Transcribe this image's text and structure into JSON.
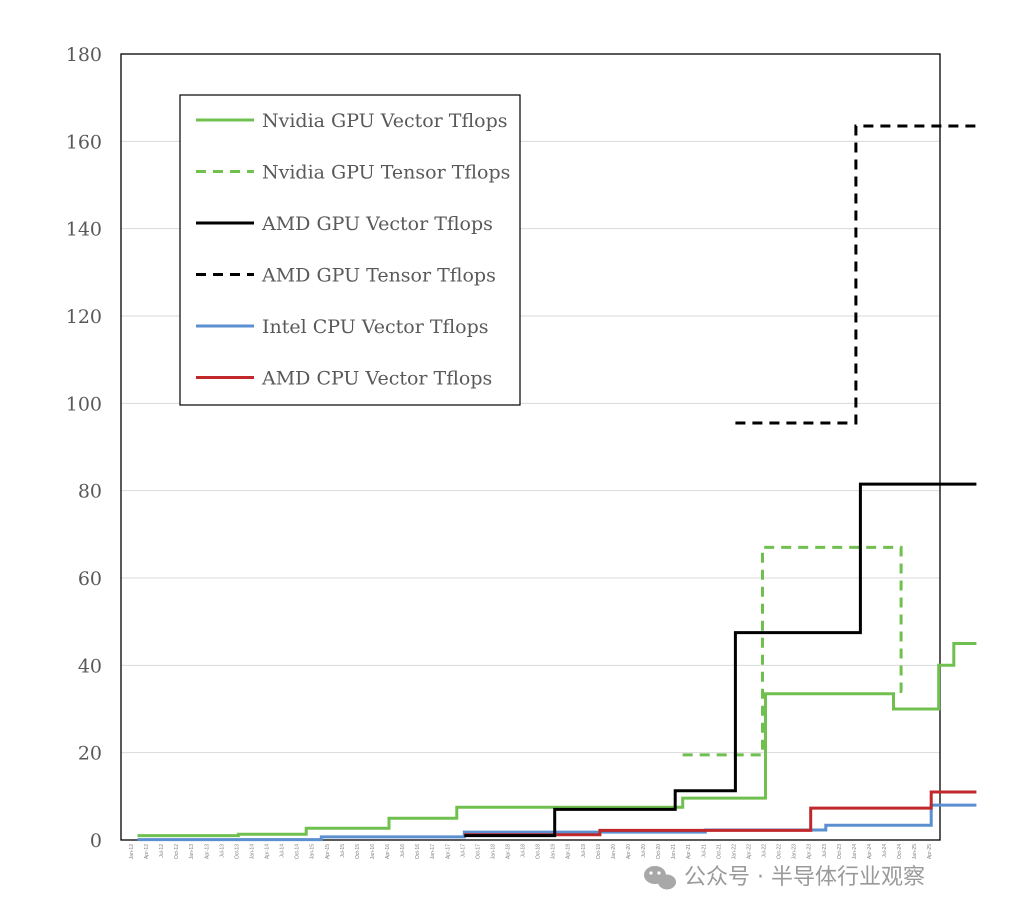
{
  "chart_data": {
    "type": "line",
    "title": "",
    "xlabel": "",
    "ylabel": "",
    "ylim": [
      0,
      180
    ],
    "yticks": [
      0,
      20,
      40,
      60,
      80,
      100,
      120,
      140,
      160,
      180
    ],
    "xticks": [
      "Jan-12",
      "Apr-12",
      "Jul-12",
      "Oct-12",
      "Jan-13",
      "Apr-13",
      "Jul-13",
      "Oct-13",
      "Jan-14",
      "Apr-14",
      "Jul-14",
      "Oct-14",
      "Jan-15",
      "Apr-15",
      "Jul-15",
      "Oct-15",
      "Jan-16",
      "Apr-16",
      "Jul-16",
      "Oct-16",
      "Jan-17",
      "Apr-17",
      "Jul-17",
      "Oct-17",
      "Jan-18",
      "Apr-18",
      "Jul-18",
      "Oct-18",
      "Jan-19",
      "Apr-19",
      "Jul-19",
      "Oct-19",
      "Jan-20",
      "Apr-20",
      "Jul-20",
      "Oct-20",
      "Jan-21",
      "Apr-21",
      "Jul-21",
      "Oct-21",
      "Jan-22",
      "Apr-22",
      "Jul-22",
      "Oct-22",
      "Jan-23",
      "Apr-23",
      "Jul-23",
      "Oct-23",
      "Jan-24",
      "Apr-24",
      "Jul-24",
      "Oct-24",
      "Jan-25",
      "Apr-25"
    ],
    "grid": true,
    "legend_position": "top-left",
    "series": [
      {
        "name": "Nvidia GPU Vector Tflops",
        "color": "#70c050",
        "dash": "solid",
        "steps": [
          [
            0.3,
            1
          ],
          [
            7,
            1.3
          ],
          [
            11.5,
            2.7
          ],
          [
            17,
            5
          ],
          [
            21.5,
            7.5
          ],
          [
            36.5,
            9.6
          ],
          [
            42,
            33.5
          ],
          [
            50.5,
            30
          ],
          [
            53.5,
            40
          ],
          [
            54.5,
            45
          ],
          [
            56,
            45
          ]
        ]
      },
      {
        "name": "Nvidia GPU Tensor Tflops",
        "color": "#70c050",
        "dash": "dashed",
        "steps": [
          [
            36.5,
            19.5
          ],
          [
            41.8,
            67
          ],
          [
            51,
            34
          ],
          [
            51.2,
            34
          ]
        ]
      },
      {
        "name": "AMD GPU Vector Tflops",
        "color": "#000000",
        "dash": "solid",
        "steps": [
          [
            22,
            1
          ],
          [
            28,
            7
          ],
          [
            36,
            11.3
          ],
          [
            40,
            47.5
          ],
          [
            48.3,
            81.5
          ],
          [
            56,
            81.5
          ]
        ]
      },
      {
        "name": "AMD GPU Tensor Tflops",
        "color": "#000000",
        "dash": "dashed",
        "steps": [
          [
            40,
            95.5
          ],
          [
            48,
            163.5
          ],
          [
            56,
            163.5
          ]
        ]
      },
      {
        "name": "Intel CPU Vector Tflops",
        "color": "#5b8fd0",
        "dash": "solid",
        "steps": [
          [
            0.3,
            0.1
          ],
          [
            12.5,
            0.7
          ],
          [
            22,
            1.8
          ],
          [
            38,
            2.3
          ],
          [
            46,
            3.4
          ],
          [
            53,
            8
          ],
          [
            56,
            8
          ]
        ]
      },
      {
        "name": "AMD CPU Vector Tflops",
        "color": "#c0282c",
        "dash": "solid",
        "steps": [
          [
            22,
            1.2
          ],
          [
            31,
            2.2
          ],
          [
            45,
            7.3
          ],
          [
            53,
            11
          ],
          [
            56,
            11
          ]
        ]
      }
    ]
  },
  "watermark": {
    "text": "公众号 · 半导体行业观察"
  }
}
